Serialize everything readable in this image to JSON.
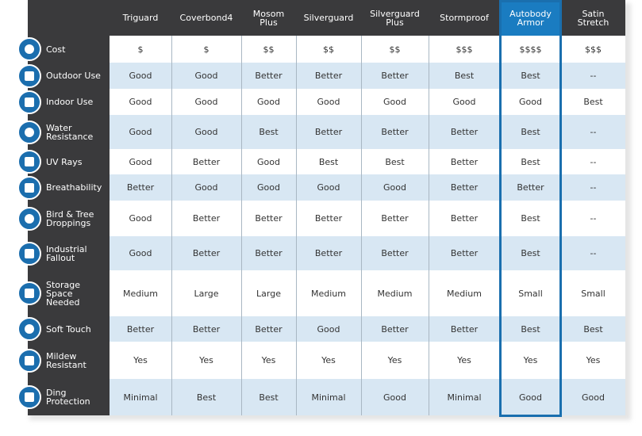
{
  "table": {
    "columns": [
      "Triguard",
      "Coverbond4",
      "Mosom Plus",
      "Silverguard",
      "Silverguard Plus",
      "Stormproof",
      "Autobody Armor",
      "Satin Stretch"
    ],
    "rows": [
      {
        "label": "Cost",
        "values": [
          "$",
          "$",
          "$$",
          "$$",
          "$$",
          "$$$",
          "$$$$",
          "$$$"
        ]
      },
      {
        "label": "Outdoor Use",
        "values": [
          "Good",
          "Good",
          "Better",
          "Better",
          "Better",
          "Best",
          "Best",
          "--"
        ]
      },
      {
        "label": "Indoor Use",
        "values": [
          "Good",
          "Good",
          "Good",
          "Good",
          "Good",
          "Good",
          "Good",
          "Best"
        ]
      },
      {
        "label": "Water Resistance",
        "values": [
          "Good",
          "Good",
          "Best",
          "Better",
          "Better",
          "Better",
          "Best",
          "--"
        ]
      },
      {
        "label": "UV Rays",
        "values": [
          "Good",
          "Better",
          "Good",
          "Best",
          "Best",
          "Better",
          "Best",
          "--"
        ]
      },
      {
        "label": "Breathability",
        "values": [
          "Better",
          "Good",
          "Good",
          "Good",
          "Good",
          "Better",
          "Better",
          "--"
        ]
      },
      {
        "label": "Bird & Tree Droppings",
        "values": [
          "Good",
          "Better",
          "Better",
          "Better",
          "Better",
          "Better",
          "Best",
          "--"
        ]
      },
      {
        "label": "Industrial Fallout",
        "values": [
          "Good",
          "Better",
          "Better",
          "Better",
          "Better",
          "Better",
          "Best",
          "--"
        ]
      },
      {
        "label": "Storage Space Needed",
        "values": [
          "Medium",
          "Large",
          "Large",
          "Medium",
          "Medium",
          "Medium",
          "Small",
          "Small"
        ]
      },
      {
        "label": "Soft Touch",
        "values": [
          "Better",
          "Better",
          "Better",
          "Good",
          "Better",
          "Better",
          "Best",
          "Best"
        ]
      },
      {
        "label": "Mildew Resistant",
        "values": [
          "Yes",
          "Yes",
          "Yes",
          "Yes",
          "Yes",
          "Yes",
          "Yes",
          "Yes"
        ]
      },
      {
        "label": "Ding Protection",
        "values": [
          "Minimal",
          "Best",
          "Best",
          "Minimal",
          "Good",
          "Minimal",
          "Good",
          "Good"
        ]
      }
    ]
  }
}
